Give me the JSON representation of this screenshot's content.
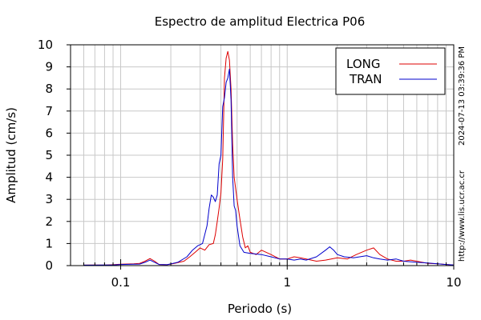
{
  "chart_data": {
    "type": "line",
    "title": "Espectro de amplitud Electrica P06",
    "xlabel": "Periodo (s)",
    "ylabel": "Amplitud (cm/s)",
    "x_scale": "log",
    "xlim": [
      0.05,
      10
    ],
    "ylim": [
      0,
      10
    ],
    "x_ticks": [
      {
        "value": 0.1,
        "label": "0.1"
      },
      {
        "value": 1,
        "label": "1"
      },
      {
        "value": 10,
        "label": "10"
      }
    ],
    "y_ticks": [
      0,
      1,
      2,
      3,
      4,
      5,
      6,
      7,
      8,
      9,
      10
    ],
    "grid": true,
    "legend_position": "top-right",
    "timestamp": "2024-07-13 03:39:36 PM",
    "source": "http://www.lis.ucr.ac.cr",
    "series": [
      {
        "name": "LONG",
        "color": "#dd0000",
        "points": [
          [
            0.06,
            0.02
          ],
          [
            0.07,
            0.03
          ],
          [
            0.08,
            0.02
          ],
          [
            0.09,
            0.04
          ],
          [
            0.1,
            0.06
          ],
          [
            0.12,
            0.08
          ],
          [
            0.13,
            0.1
          ],
          [
            0.14,
            0.2
          ],
          [
            0.15,
            0.32
          ],
          [
            0.16,
            0.2
          ],
          [
            0.17,
            0.05
          ],
          [
            0.19,
            0.04
          ],
          [
            0.21,
            0.1
          ],
          [
            0.24,
            0.2
          ],
          [
            0.26,
            0.4
          ],
          [
            0.28,
            0.6
          ],
          [
            0.3,
            0.8
          ],
          [
            0.32,
            0.7
          ],
          [
            0.34,
            0.95
          ],
          [
            0.36,
            1.0
          ],
          [
            0.37,
            1.4
          ],
          [
            0.38,
            2.0
          ],
          [
            0.39,
            2.6
          ],
          [
            0.4,
            3.3
          ],
          [
            0.41,
            4.8
          ],
          [
            0.42,
            8.5
          ],
          [
            0.43,
            9.4
          ],
          [
            0.44,
            9.7
          ],
          [
            0.45,
            9.3
          ],
          [
            0.46,
            8.0
          ],
          [
            0.47,
            5.5
          ],
          [
            0.48,
            4.0
          ],
          [
            0.49,
            3.5
          ],
          [
            0.5,
            3.0
          ],
          [
            0.52,
            2.1
          ],
          [
            0.54,
            1.3
          ],
          [
            0.56,
            0.8
          ],
          [
            0.58,
            0.9
          ],
          [
            0.6,
            0.6
          ],
          [
            0.65,
            0.5
          ],
          [
            0.7,
            0.7
          ],
          [
            0.8,
            0.5
          ],
          [
            0.9,
            0.3
          ],
          [
            1.0,
            0.3
          ],
          [
            1.1,
            0.4
          ],
          [
            1.2,
            0.35
          ],
          [
            1.3,
            0.3
          ],
          [
            1.5,
            0.2
          ],
          [
            1.7,
            0.25
          ],
          [
            2.0,
            0.35
          ],
          [
            2.3,
            0.3
          ],
          [
            2.6,
            0.5
          ],
          [
            3.0,
            0.7
          ],
          [
            3.3,
            0.8
          ],
          [
            3.6,
            0.5
          ],
          [
            4.0,
            0.3
          ],
          [
            4.5,
            0.2
          ],
          [
            5.0,
            0.2
          ],
          [
            5.5,
            0.25
          ],
          [
            6.0,
            0.2
          ],
          [
            7.0,
            0.1
          ],
          [
            8.0,
            0.08
          ],
          [
            9.0,
            0.05
          ],
          [
            10.0,
            0.03
          ]
        ]
      },
      {
        "name": "TRAN",
        "color": "#0000cc",
        "points": [
          [
            0.06,
            0.02
          ],
          [
            0.07,
            0.02
          ],
          [
            0.08,
            0.03
          ],
          [
            0.09,
            0.03
          ],
          [
            0.1,
            0.05
          ],
          [
            0.12,
            0.06
          ],
          [
            0.13,
            0.07
          ],
          [
            0.14,
            0.15
          ],
          [
            0.15,
            0.25
          ],
          [
            0.16,
            0.15
          ],
          [
            0.17,
            0.05
          ],
          [
            0.19,
            0.04
          ],
          [
            0.22,
            0.15
          ],
          [
            0.25,
            0.4
          ],
          [
            0.27,
            0.7
          ],
          [
            0.29,
            0.9
          ],
          [
            0.31,
            1.0
          ],
          [
            0.33,
            1.8
          ],
          [
            0.34,
            2.6
          ],
          [
            0.35,
            3.2
          ],
          [
            0.36,
            3.1
          ],
          [
            0.37,
            2.9
          ],
          [
            0.38,
            3.2
          ],
          [
            0.39,
            4.6
          ],
          [
            0.4,
            5.0
          ],
          [
            0.41,
            7.2
          ],
          [
            0.42,
            7.6
          ],
          [
            0.43,
            8.3
          ],
          [
            0.44,
            8.5
          ],
          [
            0.45,
            8.9
          ],
          [
            0.46,
            7.5
          ],
          [
            0.47,
            4.0
          ],
          [
            0.48,
            2.7
          ],
          [
            0.49,
            2.5
          ],
          [
            0.5,
            1.8
          ],
          [
            0.52,
            0.9
          ],
          [
            0.55,
            0.6
          ],
          [
            0.6,
            0.55
          ],
          [
            0.7,
            0.5
          ],
          [
            0.8,
            0.4
          ],
          [
            0.9,
            0.3
          ],
          [
            1.0,
            0.3
          ],
          [
            1.1,
            0.25
          ],
          [
            1.2,
            0.3
          ],
          [
            1.3,
            0.25
          ],
          [
            1.5,
            0.4
          ],
          [
            1.7,
            0.7
          ],
          [
            1.8,
            0.85
          ],
          [
            1.9,
            0.7
          ],
          [
            2.0,
            0.5
          ],
          [
            2.2,
            0.4
          ],
          [
            2.5,
            0.35
          ],
          [
            3.0,
            0.45
          ],
          [
            3.3,
            0.35
          ],
          [
            3.6,
            0.3
          ],
          [
            4.0,
            0.25
          ],
          [
            4.5,
            0.3
          ],
          [
            5.0,
            0.2
          ],
          [
            6.0,
            0.15
          ],
          [
            7.0,
            0.12
          ],
          [
            8.0,
            0.08
          ],
          [
            9.0,
            0.05
          ],
          [
            10.0,
            0.03
          ]
        ]
      }
    ]
  }
}
